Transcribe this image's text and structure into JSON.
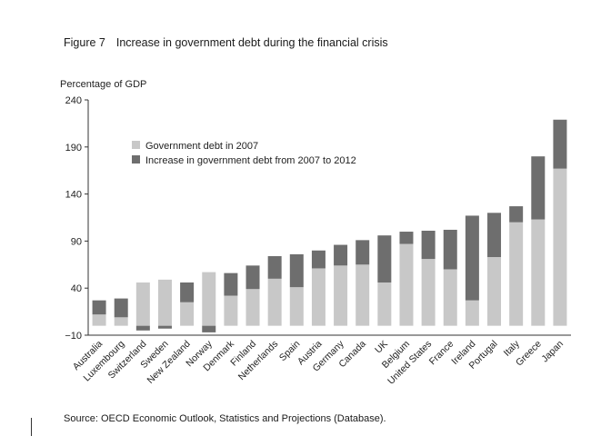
{
  "figure": {
    "number": "Figure 7",
    "title": "Increase in government debt during the financial crisis",
    "source": "Source: OECD Economic Outlook, Statistics and Projections (Database)."
  },
  "chart_data": {
    "type": "bar",
    "stacked": true,
    "ylabel": "Percentage of GDP",
    "ylim": [
      -10,
      240
    ],
    "yticks": [
      -10,
      40,
      90,
      140,
      190,
      240
    ],
    "legend_position": "top-left",
    "categories": [
      "Australia",
      "Luxembourg",
      "Switzerland",
      "Sweden",
      "New Zealand",
      "Norway",
      "Denmark",
      "Finland",
      "Netherlands",
      "Spain",
      "Austria",
      "Germany",
      "Canada",
      "UK",
      "Belgium",
      "United States",
      "France",
      "Ireland",
      "Portugal",
      "Italy",
      "Greece",
      "Japan"
    ],
    "series": [
      {
        "name": "Government debt in 2007",
        "color": "#c8c8c8",
        "values": [
          12,
          9,
          46,
          49,
          25,
          57,
          32,
          39,
          50,
          41,
          61,
          64,
          65,
          46,
          87,
          71,
          60,
          27,
          73,
          110,
          113,
          167
        ]
      },
      {
        "name": "Increase in government debt from 2007 to 2012",
        "color": "#6e6e6e",
        "values": [
          15,
          20,
          -5,
          -3,
          21,
          -7,
          24,
          25,
          24,
          35,
          19,
          22,
          26,
          50,
          13,
          30,
          42,
          90,
          47,
          17,
          67,
          52
        ]
      }
    ]
  }
}
